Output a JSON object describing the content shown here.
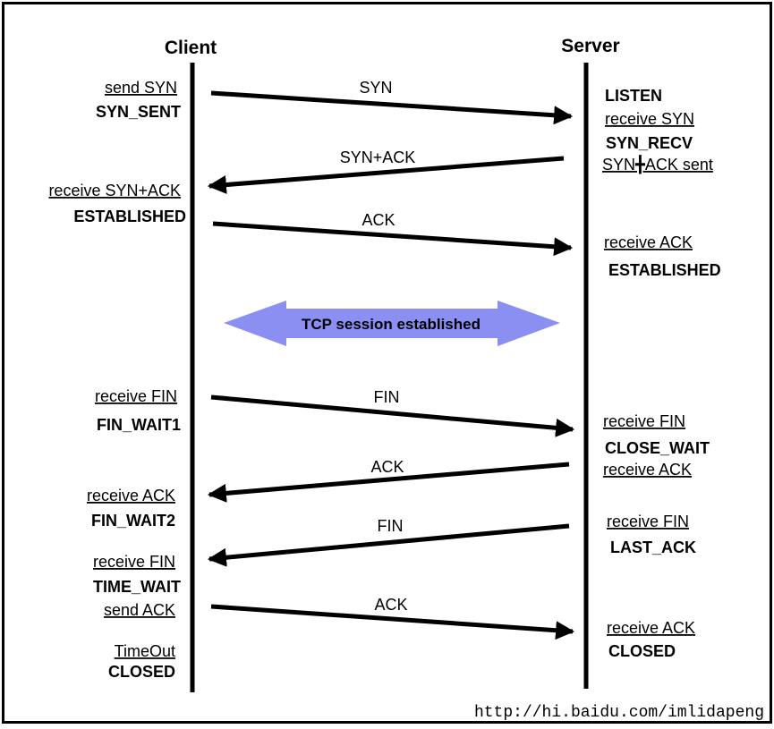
{
  "client": {
    "title": "Client"
  },
  "server": {
    "title": "Server"
  },
  "session_banner": "TCP session established",
  "watermark": "http://hi.baidu.com/imlidapeng",
  "colors": {
    "banner_fill": "#8b8ff2",
    "line": "#000000",
    "text": "#000000"
  },
  "client_labels": [
    {
      "text": "send SYN",
      "kind": "action"
    },
    {
      "text": "SYN_SENT",
      "kind": "state"
    },
    {
      "text": "receive SYN+ACK",
      "kind": "action"
    },
    {
      "text": "ESTABLISHED",
      "kind": "state"
    },
    {
      "text": "receive FIN",
      "kind": "action"
    },
    {
      "text": "FIN_WAIT1",
      "kind": "state"
    },
    {
      "text": "receive ACK",
      "kind": "action"
    },
    {
      "text": "FIN_WAIT2",
      "kind": "state"
    },
    {
      "text": "receive FIN",
      "kind": "action"
    },
    {
      "text": "TIME_WAIT",
      "kind": "state"
    },
    {
      "text": "send ACK",
      "kind": "action"
    },
    {
      "text": "TimeOut",
      "kind": "action"
    },
    {
      "text": "CLOSED",
      "kind": "state"
    }
  ],
  "server_labels": [
    {
      "text": "LISTEN",
      "kind": "state"
    },
    {
      "text": "receive SYN",
      "kind": "action"
    },
    {
      "text": "SYN_RECV",
      "kind": "state"
    },
    {
      "text": "SYN╋ACK sent",
      "kind": "action"
    },
    {
      "text": "receive ACK",
      "kind": "action"
    },
    {
      "text": "ESTABLISHED",
      "kind": "state"
    },
    {
      "text": "receive FIN",
      "kind": "action"
    },
    {
      "text": "CLOSE_WAIT",
      "kind": "state"
    },
    {
      "text": "receive ACK",
      "kind": "action"
    },
    {
      "text": "receive FIN",
      "kind": "action"
    },
    {
      "text": "LAST_ACK",
      "kind": "state"
    },
    {
      "text": "receive ACK",
      "kind": "action"
    },
    {
      "text": "CLOSED",
      "kind": "state"
    }
  ],
  "messages": [
    {
      "label": "SYN",
      "direction": "client-to-server"
    },
    {
      "label": "SYN+ACK",
      "direction": "server-to-client"
    },
    {
      "label": "ACK",
      "direction": "client-to-server"
    },
    {
      "label": "FIN",
      "direction": "client-to-server"
    },
    {
      "label": "ACK",
      "direction": "server-to-client"
    },
    {
      "label": "FIN",
      "direction": "server-to-client"
    },
    {
      "label": "ACK",
      "direction": "client-to-server"
    }
  ]
}
